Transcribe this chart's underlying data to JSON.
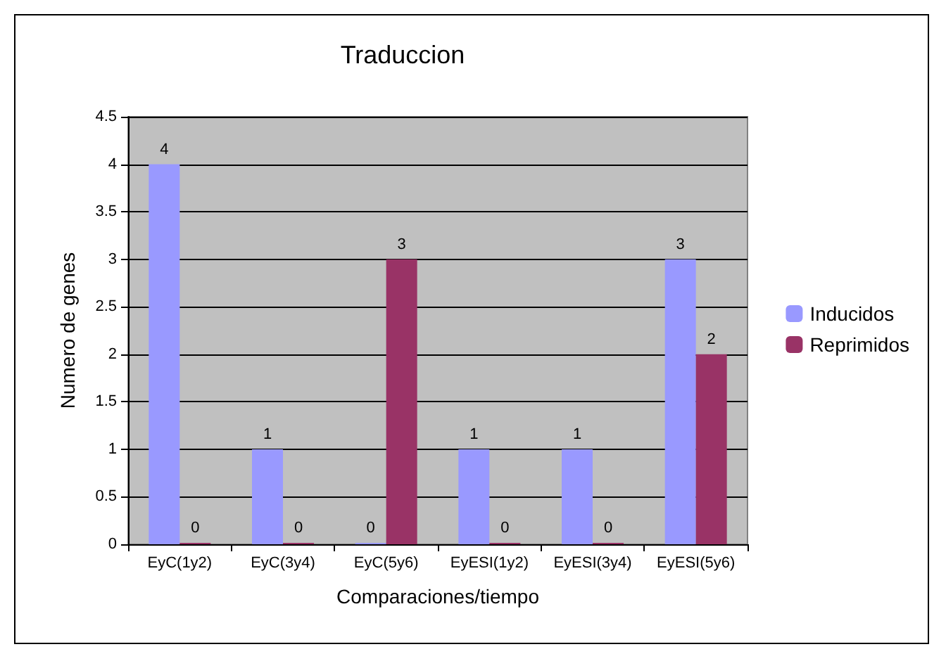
{
  "chart_data": {
    "type": "bar",
    "title": "Traduccion",
    "xlabel": "Comparaciones/tiempo",
    "ylabel": "Numero de genes",
    "categories": [
      "EyC(1y2)",
      "EyC(3y4)",
      "EyC(5y6)",
      "EyESI(1y2)",
      "EyESI(3y4)",
      "EyESI(5y6)"
    ],
    "series": [
      {
        "name": "Inducidos",
        "color": "#9999ff",
        "values": [
          4,
          1,
          0,
          1,
          1,
          3
        ]
      },
      {
        "name": "Reprimidos",
        "color": "#993366",
        "values": [
          0,
          0,
          3,
          0,
          0,
          2
        ]
      }
    ],
    "ylim": [
      0,
      4.5
    ],
    "yticks": [
      0,
      0.5,
      1,
      1.5,
      2,
      2.5,
      3,
      3.5,
      4,
      4.5
    ],
    "grid": "y",
    "legend": "right",
    "data_labels": true
  }
}
